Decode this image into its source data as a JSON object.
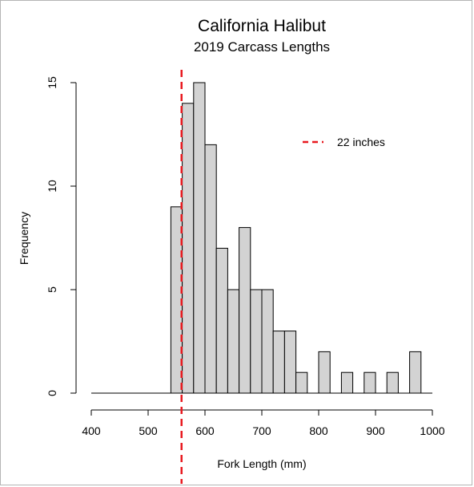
{
  "chart_data": {
    "type": "bar",
    "title": "California Halibut",
    "subtitle": "2019 Carcass Lengths",
    "xlabel": "Fork Length (mm)",
    "ylabel": "Frequency",
    "xlim": [
      400,
      1000
    ],
    "ylim": [
      0,
      15
    ],
    "x_ticks": [
      400,
      500,
      600,
      700,
      800,
      900,
      1000
    ],
    "y_ticks": [
      0,
      5,
      10,
      15
    ],
    "bin_width": 20,
    "bins": [
      {
        "start": 540,
        "end": 560,
        "count": 9
      },
      {
        "start": 560,
        "end": 580,
        "count": 14
      },
      {
        "start": 580,
        "end": 600,
        "count": 15
      },
      {
        "start": 600,
        "end": 620,
        "count": 12
      },
      {
        "start": 620,
        "end": 640,
        "count": 7
      },
      {
        "start": 640,
        "end": 660,
        "count": 5
      },
      {
        "start": 660,
        "end": 680,
        "count": 8
      },
      {
        "start": 680,
        "end": 700,
        "count": 5
      },
      {
        "start": 700,
        "end": 720,
        "count": 5
      },
      {
        "start": 720,
        "end": 740,
        "count": 3
      },
      {
        "start": 740,
        "end": 760,
        "count": 3
      },
      {
        "start": 760,
        "end": 780,
        "count": 1
      },
      {
        "start": 780,
        "end": 800,
        "count": 0
      },
      {
        "start": 800,
        "end": 820,
        "count": 2
      },
      {
        "start": 820,
        "end": 840,
        "count": 0
      },
      {
        "start": 840,
        "end": 860,
        "count": 1
      },
      {
        "start": 860,
        "end": 880,
        "count": 0
      },
      {
        "start": 880,
        "end": 900,
        "count": 1
      },
      {
        "start": 900,
        "end": 920,
        "count": 0
      },
      {
        "start": 920,
        "end": 940,
        "count": 1
      },
      {
        "start": 940,
        "end": 960,
        "count": 0
      },
      {
        "start": 960,
        "end": 980,
        "count": 2
      }
    ],
    "reference_line": {
      "x": 558.8,
      "label": "22 inches",
      "color": "#e8191f",
      "style": "dashed"
    },
    "bar_fill": "#d3d3d3",
    "bar_stroke": "#000000",
    "legend_position": "top-right",
    "grid": false
  }
}
